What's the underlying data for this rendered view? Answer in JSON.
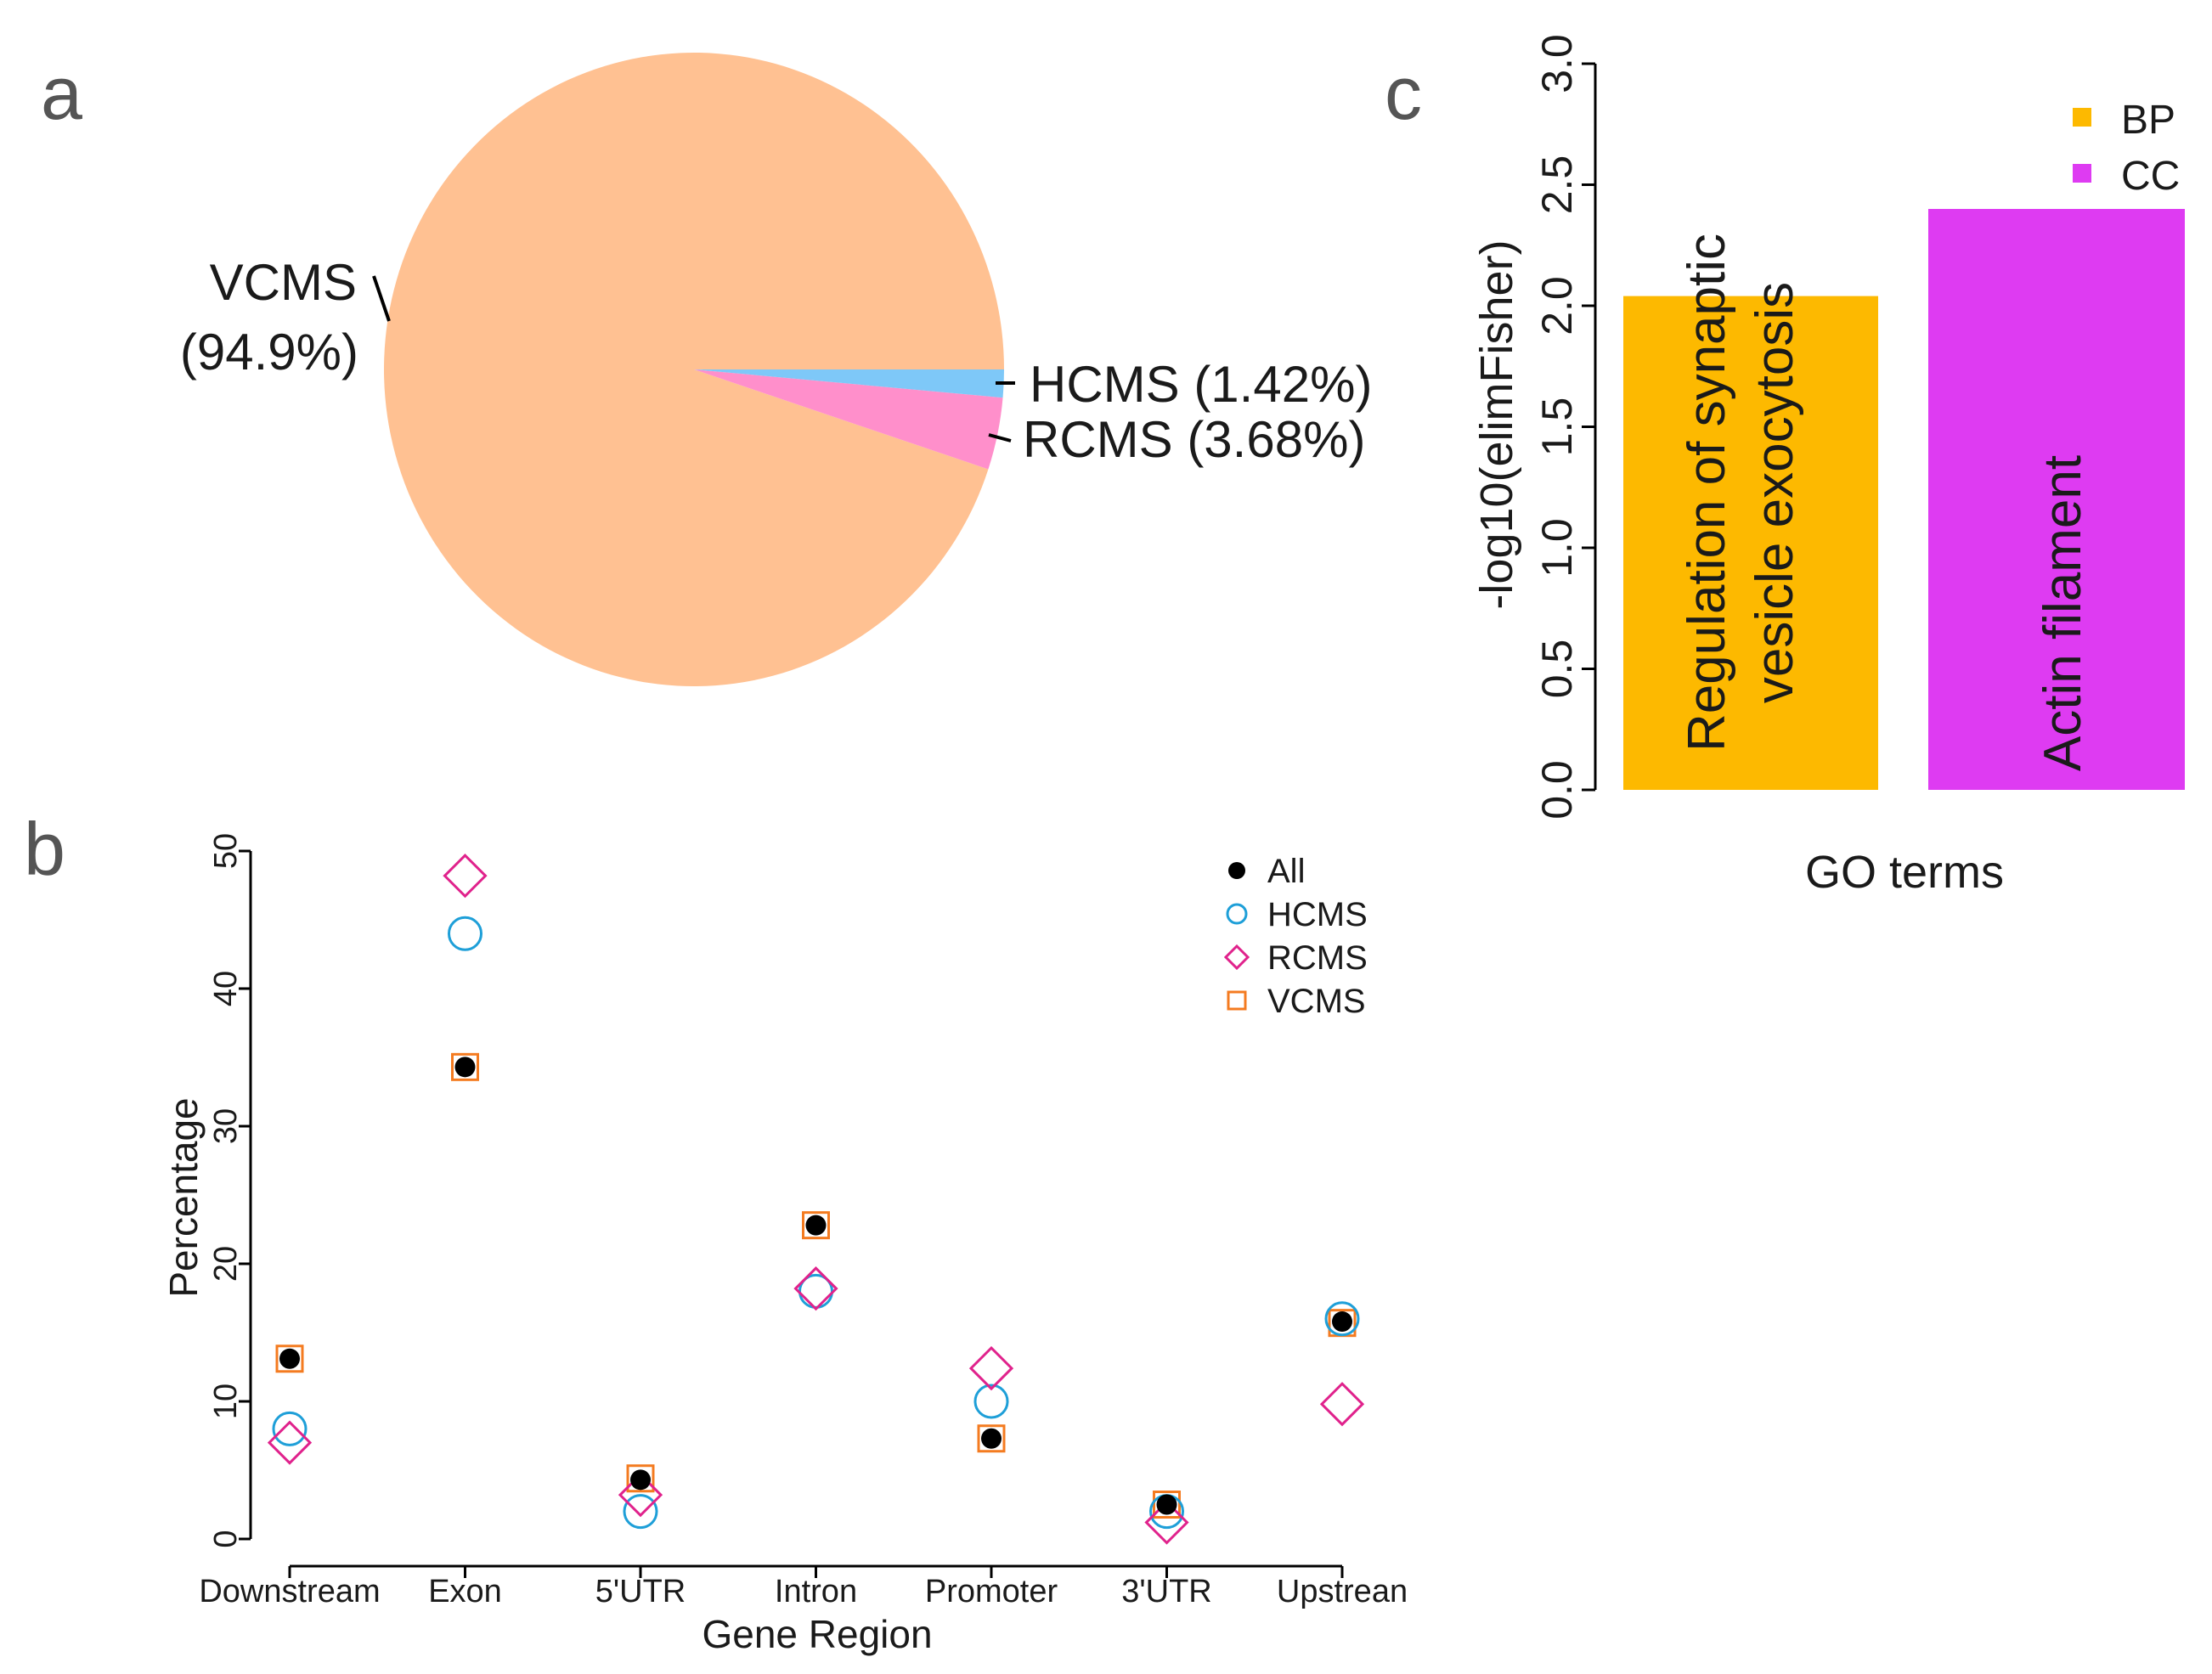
{
  "panels": {
    "a": "a",
    "b": "b",
    "c": "c"
  },
  "chart_data": [
    {
      "panel": "a",
      "type": "pie",
      "title": "",
      "slices": [
        {
          "name": "HCMS",
          "label": "HCMS (1.42%)",
          "value": 1.42,
          "color": "#7EC8F8"
        },
        {
          "name": "RCMS",
          "label": "RCMS (3.68%)",
          "value": 3.68,
          "color": "#FF8FCB"
        },
        {
          "name": "VCMS",
          "label_line1": "VCMS",
          "label_line2": "(94.9%)",
          "value": 94.9,
          "color": "#FFC192"
        }
      ]
    },
    {
      "panel": "b",
      "type": "scatter",
      "title": "",
      "xlabel": "Gene Region",
      "ylabel": "Percentage",
      "ylim": [
        0,
        50
      ],
      "yticks": [
        "0",
        "10",
        "20",
        "30",
        "40",
        "50"
      ],
      "categories": [
        "Downstream",
        "Exon",
        "5'UTR",
        "Intron",
        "Promoter",
        "3'UTR",
        "Upstrean"
      ],
      "legend_position": "top-right",
      "series": [
        {
          "name": "VCMS",
          "marker": "square",
          "color": "#F47B20",
          "values": [
            13.1,
            34.3,
            4.4,
            22.8,
            7.3,
            2.5,
            15.7
          ]
        },
        {
          "name": "HCMS",
          "marker": "circle-open",
          "color": "#1E9FD8",
          "values": [
            8.0,
            44.0,
            2.0,
            18.0,
            10.0,
            2.0,
            16.0
          ]
        },
        {
          "name": "RCMS",
          "marker": "diamond",
          "color": "#E0228C",
          "values": [
            7.0,
            48.2,
            3.2,
            18.2,
            12.4,
            1.2,
            9.8
          ]
        },
        {
          "name": "All",
          "marker": "dot",
          "color": "#000000",
          "values": [
            13.1,
            34.3,
            4.3,
            22.8,
            7.3,
            2.5,
            15.8
          ]
        }
      ],
      "legend": [
        "All",
        "HCMS",
        "RCMS",
        "VCMS"
      ]
    },
    {
      "panel": "c",
      "type": "bar",
      "title": "",
      "xlabel": "GO terms",
      "ylabel": "-log10(elimFisher)",
      "ylim": [
        0,
        3.0
      ],
      "yticks": [
        "0.0",
        "0.5",
        "1.0",
        "1.5",
        "2.0",
        "2.5",
        "3.0"
      ],
      "legend_position": "top-right",
      "legend": [
        {
          "name": "BP",
          "color": "#FDB900"
        },
        {
          "name": "CC",
          "color": "#DE3BF2"
        }
      ],
      "bars": [
        {
          "category": "BP",
          "label_line1": "Regulation of synaptic",
          "label_line2": "vesicle exocytosis",
          "value": 2.04,
          "color": "#FDB900"
        },
        {
          "category": "CC",
          "label_line1": "Actin filament",
          "value": 2.4,
          "color": "#DE3BF2"
        }
      ]
    }
  ]
}
